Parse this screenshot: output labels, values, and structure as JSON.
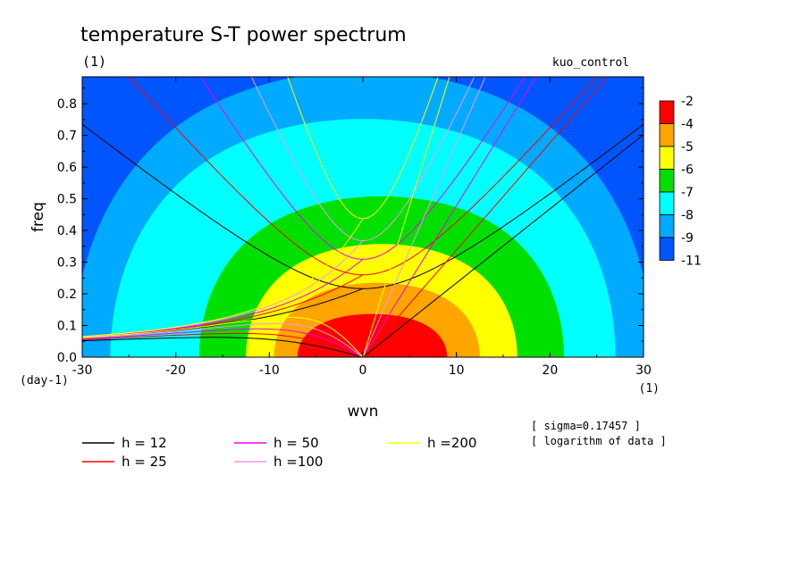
{
  "chart_data": {
    "type": "heatmap",
    "title": "temperature S-T power spectrum",
    "subtitle_left": "(1)",
    "subtitle_right": "kuo_control",
    "xlabel": "wvn",
    "ylabel": "freq",
    "x_unit": "(1)",
    "y_unit": "(day-1)",
    "xlim": [
      -30,
      30
    ],
    "ylim": [
      0,
      0.885
    ],
    "xticks": [
      "-30",
      "-20",
      "-10",
      "0",
      "10",
      "20",
      "30"
    ],
    "yticks": [
      "0.0",
      "0.1",
      "0.2",
      "0.3",
      "0.4",
      "0.5",
      "0.6",
      "0.7",
      "0.8"
    ],
    "colorbar": {
      "levels": [
        "-2",
        "-4",
        "-5",
        "-6",
        "-7",
        "-8",
        "-9",
        "-11"
      ],
      "colors": [
        "#ff0000",
        "#ffa500",
        "#ffff00",
        "#00e000",
        "#00ffff",
        "#00aaff",
        "#0055ff"
      ]
    },
    "contour_fills": [
      {
        "level": "-9",
        "color": "#00aaff",
        "cx": 0,
        "cy": 0,
        "rx": 31,
        "ry": 0.96
      },
      {
        "level": "-8",
        "color": "#00ffff",
        "cx": 0,
        "cy": 0,
        "rx": 27,
        "ry": 0.8
      },
      {
        "level": "-7",
        "color": "#00e000",
        "cx": 2,
        "cy": 0,
        "rx": 19.5,
        "ry": 0.54
      },
      {
        "level": "-6",
        "color": "#ffff00",
        "cx": 2,
        "cy": 0,
        "rx": 14.5,
        "ry": 0.38
      },
      {
        "level": "-5",
        "color": "#ffa500",
        "cx": 1.5,
        "cy": 0,
        "rx": 11,
        "ry": 0.25
      },
      {
        "level": "-4",
        "color": "#ff0000",
        "cx": 1,
        "cy": 0,
        "rx": 8,
        "ry": 0.145
      }
    ],
    "dispersion_curves": [
      {
        "h": "12",
        "color": "#000000"
      },
      {
        "h": "25",
        "color": "#ff0000"
      },
      {
        "h": "50",
        "color": "#ee00ee"
      },
      {
        "h": "100",
        "color": "#ee99ee"
      },
      {
        "h": "200",
        "color": "#ffff00"
      }
    ],
    "legend": [
      {
        "label": "h = 12",
        "color": "#000000"
      },
      {
        "label": "h = 25",
        "color": "#ff0000"
      },
      {
        "label": "h = 50",
        "color": "#ee00ee"
      },
      {
        "label": "h =100",
        "color": "#ee99ee"
      },
      {
        "label": "h =200",
        "color": "#ffff00"
      }
    ],
    "notes": [
      "[ sigma=0.17457 ]",
      "[ logarithm of data ]"
    ]
  }
}
